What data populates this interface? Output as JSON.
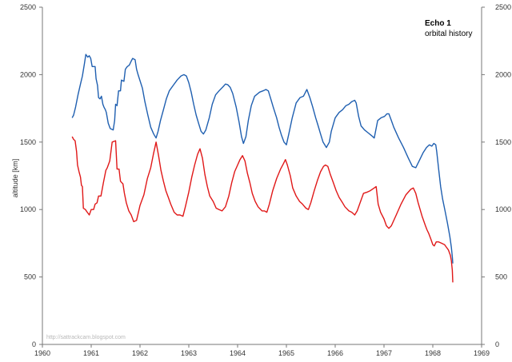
{
  "chart_data": {
    "type": "line",
    "title": "Echo 1",
    "subtitle": "orbital history",
    "ylabel": "altitude [km]",
    "xlabel": "",
    "xlim": [
      1960,
      1969
    ],
    "ylim": [
      0,
      2500
    ],
    "x_ticks": [
      "1960",
      "1961",
      "1962",
      "1963",
      "1964",
      "1965",
      "1966",
      "1967",
      "1968",
      "1969"
    ],
    "y_ticks": [
      "0",
      "500",
      "1000",
      "1500",
      "2000",
      "2500"
    ],
    "grid": false,
    "legend": "none",
    "watermark": "http://sattrackcam.blogspot.com",
    "series": [
      {
        "color": "#1f5fb0",
        "points": [
          [
            1960.61,
            1680
          ],
          [
            1960.64,
            1700
          ],
          [
            1960.68,
            1760
          ],
          [
            1960.73,
            1850
          ],
          [
            1960.78,
            1930
          ],
          [
            1960.82,
            1990
          ],
          [
            1960.86,
            2080
          ],
          [
            1960.89,
            2150
          ],
          [
            1960.93,
            2130
          ],
          [
            1960.96,
            2140
          ],
          [
            1960.99,
            2120
          ],
          [
            1961.02,
            2060
          ],
          [
            1961.05,
            2060
          ],
          [
            1961.08,
            2060
          ],
          [
            1961.1,
            1970
          ],
          [
            1961.13,
            1920
          ],
          [
            1961.15,
            1830
          ],
          [
            1961.18,
            1820
          ],
          [
            1961.21,
            1840
          ],
          [
            1961.24,
            1780
          ],
          [
            1961.26,
            1760
          ],
          [
            1961.29,
            1740
          ],
          [
            1961.31,
            1720
          ],
          [
            1961.35,
            1640
          ],
          [
            1961.39,
            1600
          ],
          [
            1961.45,
            1590
          ],
          [
            1961.48,
            1660
          ],
          [
            1961.5,
            1780
          ],
          [
            1961.53,
            1770
          ],
          [
            1961.56,
            1880
          ],
          [
            1961.6,
            1880
          ],
          [
            1961.62,
            1960
          ],
          [
            1961.67,
            1950
          ],
          [
            1961.7,
            2040
          ],
          [
            1961.74,
            2060
          ],
          [
            1961.78,
            2070
          ],
          [
            1961.82,
            2100
          ],
          [
            1961.85,
            2120
          ],
          [
            1961.9,
            2110
          ],
          [
            1961.93,
            2040
          ],
          [
            1961.96,
            2000
          ],
          [
            1962.05,
            1900
          ],
          [
            1962.1,
            1800
          ],
          [
            1962.16,
            1700
          ],
          [
            1962.22,
            1610
          ],
          [
            1962.28,
            1560
          ],
          [
            1962.33,
            1530
          ],
          [
            1962.37,
            1580
          ],
          [
            1962.42,
            1660
          ],
          [
            1962.48,
            1740
          ],
          [
            1962.54,
            1820
          ],
          [
            1962.6,
            1880
          ],
          [
            1962.68,
            1920
          ],
          [
            1962.76,
            1960
          ],
          [
            1962.84,
            1990
          ],
          [
            1962.9,
            2000
          ],
          [
            1962.95,
            1990
          ],
          [
            1963.0,
            1940
          ],
          [
            1963.05,
            1870
          ],
          [
            1963.1,
            1780
          ],
          [
            1963.15,
            1700
          ],
          [
            1963.2,
            1640
          ],
          [
            1963.25,
            1580
          ],
          [
            1963.3,
            1560
          ],
          [
            1963.35,
            1590
          ],
          [
            1963.42,
            1680
          ],
          [
            1963.48,
            1780
          ],
          [
            1963.55,
            1850
          ],
          [
            1963.62,
            1880
          ],
          [
            1963.7,
            1910
          ],
          [
            1963.75,
            1930
          ],
          [
            1963.8,
            1925
          ],
          [
            1963.85,
            1905
          ],
          [
            1963.9,
            1860
          ],
          [
            1963.97,
            1760
          ],
          [
            1964.03,
            1650
          ],
          [
            1964.08,
            1540
          ],
          [
            1964.12,
            1490
          ],
          [
            1964.17,
            1540
          ],
          [
            1964.22,
            1660
          ],
          [
            1964.28,
            1770
          ],
          [
            1964.35,
            1840
          ],
          [
            1964.45,
            1870
          ],
          [
            1964.52,
            1880
          ],
          [
            1964.58,
            1890
          ],
          [
            1964.63,
            1880
          ],
          [
            1964.68,
            1820
          ],
          [
            1964.73,
            1760
          ],
          [
            1964.8,
            1680
          ],
          [
            1964.85,
            1610
          ],
          [
            1964.9,
            1550
          ],
          [
            1964.95,
            1500
          ],
          [
            1965.0,
            1480
          ],
          [
            1965.05,
            1560
          ],
          [
            1965.12,
            1680
          ],
          [
            1965.2,
            1790
          ],
          [
            1965.28,
            1830
          ],
          [
            1965.35,
            1840
          ],
          [
            1965.42,
            1890
          ],
          [
            1965.48,
            1830
          ],
          [
            1965.54,
            1760
          ],
          [
            1965.6,
            1680
          ],
          [
            1965.65,
            1620
          ],
          [
            1965.7,
            1560
          ],
          [
            1965.75,
            1500
          ],
          [
            1965.82,
            1460
          ],
          [
            1965.88,
            1500
          ],
          [
            1965.92,
            1580
          ],
          [
            1966.0,
            1680
          ],
          [
            1966.08,
            1720
          ],
          [
            1966.15,
            1740
          ],
          [
            1966.22,
            1770
          ],
          [
            1966.28,
            1780
          ],
          [
            1966.34,
            1800
          ],
          [
            1966.4,
            1810
          ],
          [
            1966.43,
            1790
          ],
          [
            1966.48,
            1690
          ],
          [
            1966.53,
            1620
          ],
          [
            1966.6,
            1590
          ],
          [
            1966.67,
            1570
          ],
          [
            1966.74,
            1550
          ],
          [
            1966.8,
            1530
          ],
          [
            1966.87,
            1660
          ],
          [
            1966.94,
            1680
          ],
          [
            1967.01,
            1690
          ],
          [
            1967.06,
            1710
          ],
          [
            1967.1,
            1710
          ],
          [
            1967.15,
            1660
          ],
          [
            1967.2,
            1610
          ],
          [
            1967.3,
            1530
          ],
          [
            1967.4,
            1460
          ],
          [
            1967.5,
            1380
          ],
          [
            1967.58,
            1320
          ],
          [
            1967.65,
            1310
          ],
          [
            1967.72,
            1360
          ],
          [
            1967.8,
            1420
          ],
          [
            1967.87,
            1460
          ],
          [
            1967.93,
            1480
          ],
          [
            1967.98,
            1470
          ],
          [
            1968.02,
            1490
          ],
          [
            1968.06,
            1480
          ],
          [
            1968.08,
            1430
          ],
          [
            1968.12,
            1300
          ],
          [
            1968.16,
            1170
          ],
          [
            1968.2,
            1080
          ],
          [
            1968.25,
            990
          ],
          [
            1968.3,
            900
          ],
          [
            1968.35,
            800
          ],
          [
            1968.38,
            720
          ],
          [
            1968.4,
            650
          ],
          [
            1968.41,
            600
          ]
        ]
      },
      {
        "color": "#e01818",
        "points": [
          [
            1960.61,
            1540
          ],
          [
            1960.64,
            1520
          ],
          [
            1960.67,
            1510
          ],
          [
            1960.7,
            1430
          ],
          [
            1960.72,
            1330
          ],
          [
            1960.75,
            1280
          ],
          [
            1960.78,
            1240
          ],
          [
            1960.8,
            1180
          ],
          [
            1960.82,
            1170
          ],
          [
            1960.84,
            1010
          ],
          [
            1960.88,
            1000
          ],
          [
            1960.92,
            980
          ],
          [
            1960.96,
            960
          ],
          [
            1961.0,
            1000
          ],
          [
            1961.05,
            1000
          ],
          [
            1961.08,
            1040
          ],
          [
            1961.12,
            1050
          ],
          [
            1961.15,
            1100
          ],
          [
            1961.2,
            1100
          ],
          [
            1961.25,
            1200
          ],
          [
            1961.3,
            1290
          ],
          [
            1961.33,
            1310
          ],
          [
            1961.38,
            1360
          ],
          [
            1961.43,
            1500
          ],
          [
            1961.5,
            1510
          ],
          [
            1961.53,
            1300
          ],
          [
            1961.57,
            1300
          ],
          [
            1961.6,
            1210
          ],
          [
            1961.65,
            1190
          ],
          [
            1961.68,
            1120
          ],
          [
            1961.72,
            1050
          ],
          [
            1961.77,
            990
          ],
          [
            1961.82,
            960
          ],
          [
            1961.87,
            910
          ],
          [
            1961.93,
            920
          ],
          [
            1962.0,
            1030
          ],
          [
            1962.08,
            1110
          ],
          [
            1962.15,
            1230
          ],
          [
            1962.22,
            1310
          ],
          [
            1962.28,
            1420
          ],
          [
            1962.33,
            1500
          ],
          [
            1962.38,
            1400
          ],
          [
            1962.43,
            1290
          ],
          [
            1962.48,
            1210
          ],
          [
            1962.53,
            1140
          ],
          [
            1962.58,
            1090
          ],
          [
            1962.63,
            1040
          ],
          [
            1962.7,
            980
          ],
          [
            1962.76,
            960
          ],
          [
            1962.82,
            960
          ],
          [
            1962.88,
            950
          ],
          [
            1962.93,
            1020
          ],
          [
            1963.0,
            1130
          ],
          [
            1963.06,
            1240
          ],
          [
            1963.12,
            1330
          ],
          [
            1963.18,
            1410
          ],
          [
            1963.23,
            1450
          ],
          [
            1963.28,
            1380
          ],
          [
            1963.33,
            1260
          ],
          [
            1963.38,
            1170
          ],
          [
            1963.43,
            1100
          ],
          [
            1963.5,
            1060
          ],
          [
            1963.56,
            1010
          ],
          [
            1963.62,
            1000
          ],
          [
            1963.68,
            990
          ],
          [
            1963.75,
            1020
          ],
          [
            1963.82,
            1100
          ],
          [
            1963.88,
            1200
          ],
          [
            1963.94,
            1280
          ],
          [
            1964.0,
            1330
          ],
          [
            1964.05,
            1370
          ],
          [
            1964.1,
            1400
          ],
          [
            1964.15,
            1360
          ],
          [
            1964.2,
            1270
          ],
          [
            1964.25,
            1200
          ],
          [
            1964.3,
            1120
          ],
          [
            1964.36,
            1060
          ],
          [
            1964.42,
            1020
          ],
          [
            1964.5,
            990
          ],
          [
            1964.55,
            990
          ],
          [
            1964.6,
            980
          ],
          [
            1964.65,
            1040
          ],
          [
            1964.72,
            1140
          ],
          [
            1964.8,
            1230
          ],
          [
            1964.88,
            1300
          ],
          [
            1964.94,
            1340
          ],
          [
            1964.98,
            1370
          ],
          [
            1965.02,
            1330
          ],
          [
            1965.08,
            1250
          ],
          [
            1965.13,
            1160
          ],
          [
            1965.2,
            1100
          ],
          [
            1965.27,
            1060
          ],
          [
            1965.33,
            1040
          ],
          [
            1965.4,
            1010
          ],
          [
            1965.45,
            1000
          ],
          [
            1965.5,
            1050
          ],
          [
            1965.57,
            1140
          ],
          [
            1965.64,
            1220
          ],
          [
            1965.7,
            1280
          ],
          [
            1965.76,
            1320
          ],
          [
            1965.8,
            1330
          ],
          [
            1965.85,
            1320
          ],
          [
            1965.9,
            1260
          ],
          [
            1965.96,
            1200
          ],
          [
            1966.02,
            1140
          ],
          [
            1966.08,
            1090
          ],
          [
            1966.15,
            1050
          ],
          [
            1966.2,
            1020
          ],
          [
            1966.28,
            990
          ],
          [
            1966.34,
            980
          ],
          [
            1966.4,
            960
          ],
          [
            1966.45,
            990
          ],
          [
            1966.52,
            1060
          ],
          [
            1966.58,
            1120
          ],
          [
            1966.66,
            1130
          ],
          [
            1966.72,
            1140
          ],
          [
            1966.8,
            1160
          ],
          [
            1966.84,
            1170
          ],
          [
            1966.88,
            1040
          ],
          [
            1966.93,
            980
          ],
          [
            1967.0,
            930
          ],
          [
            1967.05,
            880
          ],
          [
            1967.1,
            860
          ],
          [
            1967.15,
            880
          ],
          [
            1967.25,
            960
          ],
          [
            1967.35,
            1040
          ],
          [
            1967.45,
            1110
          ],
          [
            1967.55,
            1150
          ],
          [
            1967.6,
            1160
          ],
          [
            1967.65,
            1120
          ],
          [
            1967.7,
            1050
          ],
          [
            1967.78,
            950
          ],
          [
            1967.85,
            880
          ],
          [
            1967.88,
            850
          ],
          [
            1967.92,
            820
          ],
          [
            1967.96,
            780
          ],
          [
            1968.0,
            740
          ],
          [
            1968.03,
            730
          ],
          [
            1968.07,
            760
          ],
          [
            1968.12,
            760
          ],
          [
            1968.18,
            750
          ],
          [
            1968.24,
            740
          ],
          [
            1968.28,
            720
          ],
          [
            1968.32,
            700
          ],
          [
            1968.36,
            660
          ],
          [
            1968.38,
            620
          ],
          [
            1968.4,
            550
          ],
          [
            1968.41,
            460
          ]
        ]
      }
    ]
  }
}
